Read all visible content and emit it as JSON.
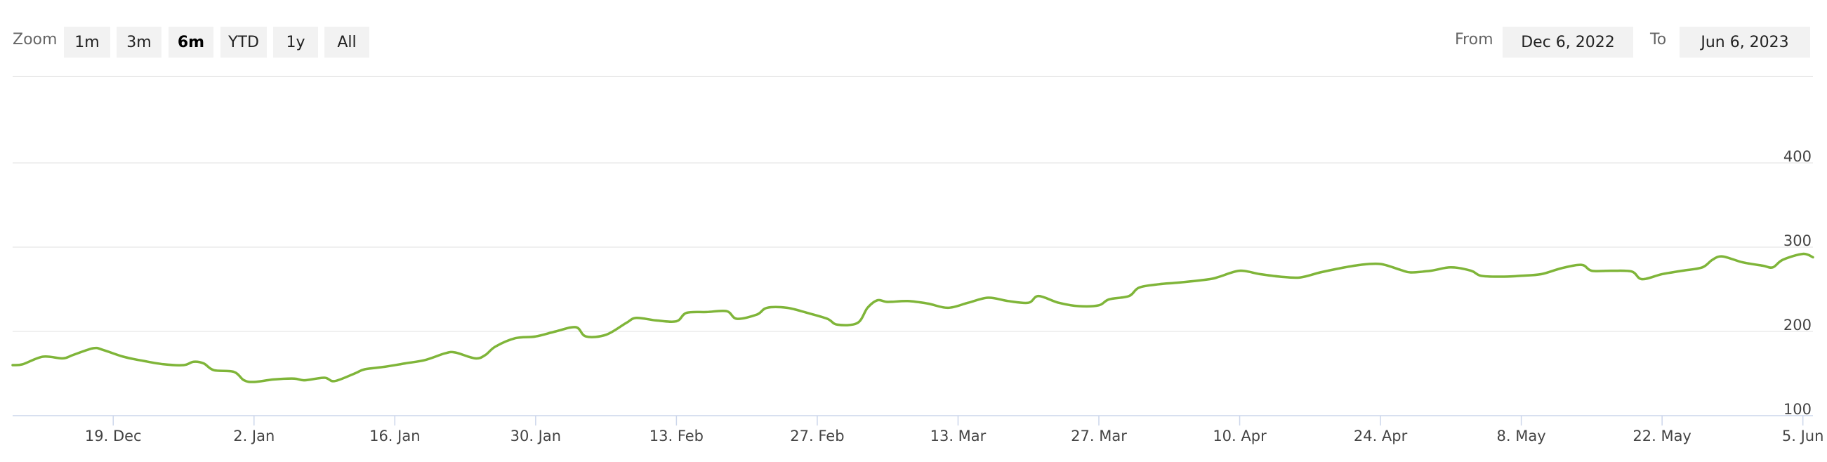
{
  "toolbar": {
    "zoom_label": "Zoom",
    "zoom_buttons": [
      "1m",
      "3m",
      "6m",
      "YTD",
      "1y",
      "All"
    ],
    "active_zoom": "6m",
    "from_label": "From",
    "from_value": "Dec 6, 2022",
    "to_label": "To",
    "to_value": "Jun 6, 2023"
  },
  "colors": {
    "line": "#7fb539",
    "grid": "#e0e0e0",
    "axis": "#ccd6eb"
  },
  "chart_data": {
    "type": "line",
    "title": "",
    "xlabel": "",
    "ylabel": "",
    "x_range": [
      "2022-12-09",
      "2023-06-06"
    ],
    "ylim": [
      100,
      400
    ],
    "y_ticks": [
      100,
      200,
      300,
      400
    ],
    "x_ticks": [
      {
        "date": "2022-12-19",
        "label": "19. Dec"
      },
      {
        "date": "2023-01-02",
        "label": "2. Jan"
      },
      {
        "date": "2023-01-16",
        "label": "16. Jan"
      },
      {
        "date": "2023-01-30",
        "label": "30. Jan"
      },
      {
        "date": "2023-02-13",
        "label": "13. Feb"
      },
      {
        "date": "2023-02-27",
        "label": "27. Feb"
      },
      {
        "date": "2023-03-13",
        "label": "13. Mar"
      },
      {
        "date": "2023-03-27",
        "label": "27. Mar"
      },
      {
        "date": "2023-04-10",
        "label": "10. Apr"
      },
      {
        "date": "2023-04-24",
        "label": "24. Apr"
      },
      {
        "date": "2023-05-08",
        "label": "8. May"
      },
      {
        "date": "2023-05-22",
        "label": "22. May"
      },
      {
        "date": "2023-06-05",
        "label": "5. Jun"
      }
    ],
    "grid": true,
    "series": [
      {
        "points": [
          [
            "2022-12-09",
            160
          ],
          [
            "2022-12-10",
            161
          ],
          [
            "2022-12-12",
            170
          ],
          [
            "2022-12-14",
            168
          ],
          [
            "2022-12-15",
            172
          ],
          [
            "2022-12-17",
            180
          ],
          [
            "2022-12-18",
            178
          ],
          [
            "2022-12-20",
            170
          ],
          [
            "2022-12-22",
            165
          ],
          [
            "2022-12-24",
            161
          ],
          [
            "2022-12-26",
            160
          ],
          [
            "2022-12-27",
            164
          ],
          [
            "2022-12-28",
            162
          ],
          [
            "2022-12-29",
            154
          ],
          [
            "2022-12-31",
            152
          ],
          [
            "2023-01-01",
            142
          ],
          [
            "2023-01-02",
            140
          ],
          [
            "2023-01-04",
            143
          ],
          [
            "2023-01-06",
            144
          ],
          [
            "2023-01-07",
            142
          ],
          [
            "2023-01-09",
            145
          ],
          [
            "2023-01-10",
            141
          ],
          [
            "2023-01-12",
            150
          ],
          [
            "2023-01-13",
            155
          ],
          [
            "2023-01-15",
            158
          ],
          [
            "2023-01-17",
            162
          ],
          [
            "2023-01-19",
            166
          ],
          [
            "2023-01-21",
            174
          ],
          [
            "2023-01-22",
            175
          ],
          [
            "2023-01-24",
            168
          ],
          [
            "2023-01-25",
            172
          ],
          [
            "2023-01-26",
            182
          ],
          [
            "2023-01-28",
            192
          ],
          [
            "2023-01-30",
            194
          ],
          [
            "2023-02-01",
            200
          ],
          [
            "2023-02-03",
            205
          ],
          [
            "2023-02-04",
            194
          ],
          [
            "2023-02-06",
            196
          ],
          [
            "2023-02-08",
            210
          ],
          [
            "2023-02-09",
            216
          ],
          [
            "2023-02-11",
            213
          ],
          [
            "2023-02-13",
            212
          ],
          [
            "2023-02-14",
            222
          ],
          [
            "2023-02-16",
            223
          ],
          [
            "2023-02-18",
            224
          ],
          [
            "2023-02-19",
            215
          ],
          [
            "2023-02-21",
            220
          ],
          [
            "2023-02-22",
            228
          ],
          [
            "2023-02-24",
            228
          ],
          [
            "2023-02-26",
            222
          ],
          [
            "2023-02-28",
            215
          ],
          [
            "2023-03-01",
            208
          ],
          [
            "2023-03-03",
            210
          ],
          [
            "2023-03-04",
            228
          ],
          [
            "2023-03-05",
            237
          ],
          [
            "2023-03-06",
            235
          ],
          [
            "2023-03-08",
            236
          ],
          [
            "2023-03-10",
            233
          ],
          [
            "2023-03-12",
            228
          ],
          [
            "2023-03-14",
            234
          ],
          [
            "2023-03-16",
            240
          ],
          [
            "2023-03-18",
            236
          ],
          [
            "2023-03-20",
            234
          ],
          [
            "2023-03-21",
            242
          ],
          [
            "2023-03-23",
            234
          ],
          [
            "2023-03-25",
            230
          ],
          [
            "2023-03-27",
            231
          ],
          [
            "2023-03-28",
            238
          ],
          [
            "2023-03-30",
            242
          ],
          [
            "2023-03-31",
            252
          ],
          [
            "2023-04-02",
            256
          ],
          [
            "2023-04-04",
            258
          ],
          [
            "2023-04-07",
            262
          ],
          [
            "2023-04-08",
            265
          ],
          [
            "2023-04-10",
            272
          ],
          [
            "2023-04-12",
            268
          ],
          [
            "2023-04-14",
            265
          ],
          [
            "2023-04-16",
            264
          ],
          [
            "2023-04-18",
            270
          ],
          [
            "2023-04-20",
            275
          ],
          [
            "2023-04-22",
            279
          ],
          [
            "2023-04-24",
            280
          ],
          [
            "2023-04-26",
            273
          ],
          [
            "2023-04-27",
            270
          ],
          [
            "2023-04-29",
            272
          ],
          [
            "2023-05-01",
            276
          ],
          [
            "2023-05-03",
            272
          ],
          [
            "2023-05-04",
            266
          ],
          [
            "2023-05-06",
            265
          ],
          [
            "2023-05-08",
            266
          ],
          [
            "2023-05-10",
            268
          ],
          [
            "2023-05-12",
            275
          ],
          [
            "2023-05-14",
            279
          ],
          [
            "2023-05-15",
            272
          ],
          [
            "2023-05-17",
            272
          ],
          [
            "2023-05-19",
            271
          ],
          [
            "2023-05-20",
            262
          ],
          [
            "2023-05-22",
            268
          ],
          [
            "2023-05-24",
            272
          ],
          [
            "2023-05-26",
            276
          ],
          [
            "2023-05-27",
            285
          ],
          [
            "2023-05-28",
            289
          ],
          [
            "2023-05-30",
            282
          ],
          [
            "2023-06-01",
            278
          ],
          [
            "2023-06-02",
            276
          ],
          [
            "2023-06-03",
            285
          ],
          [
            "2023-06-05",
            292
          ],
          [
            "2023-06-06",
            288
          ]
        ]
      }
    ]
  }
}
